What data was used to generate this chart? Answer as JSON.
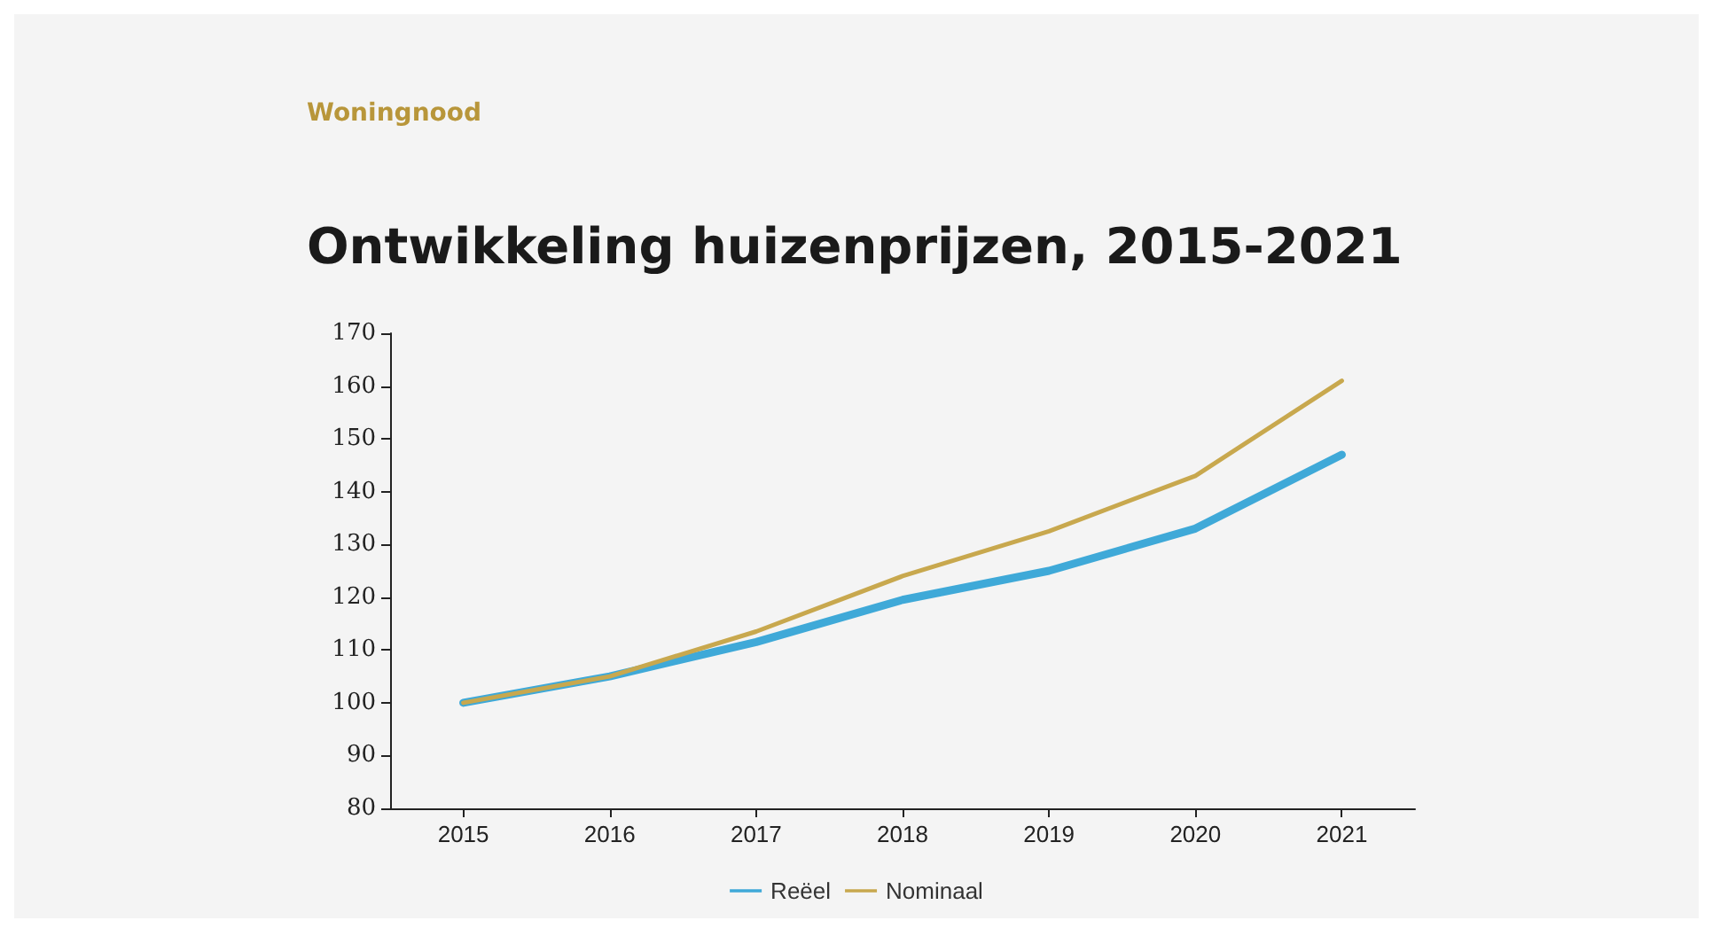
{
  "chart_data": {
    "type": "line",
    "title": "Ontwikkeling huizenprijzen, 2015-2021",
    "subtitle": "Woningnood",
    "categories": [
      "2015",
      "2016",
      "2017",
      "2018",
      "2019",
      "2020",
      "2021"
    ],
    "series": [
      {
        "name": "Reëel",
        "color": "#3fa9d8",
        "values": [
          100,
          105,
          111.5,
          119.5,
          125,
          133,
          147
        ]
      },
      {
        "name": "Nominaal",
        "color": "#c8a84e",
        "values": [
          100,
          105,
          113.5,
          124,
          132.5,
          143,
          161
        ]
      }
    ],
    "ylim": [
      80,
      170
    ],
    "yticks": [
      80,
      90,
      100,
      110,
      120,
      130,
      140,
      150,
      160,
      170
    ],
    "grid": false,
    "legend": "bottom",
    "marker": "none",
    "line_style": "solid"
  }
}
